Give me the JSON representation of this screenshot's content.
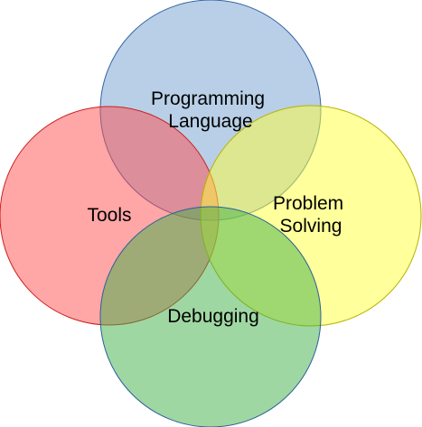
{
  "venn": {
    "sets": [
      {
        "id": "programming-language",
        "lines": [
          "Programming",
          "Language"
        ],
        "fill": "#729fcf",
        "stroke": "#3465a4"
      },
      {
        "id": "tools",
        "lines": [
          "Tools"
        ],
        "fill": "#ff4d4d",
        "stroke": "#c9211e"
      },
      {
        "id": "problem-solving",
        "lines": [
          "Problem",
          "Solving"
        ],
        "fill": "#ffff38",
        "stroke": "#b7b300"
      },
      {
        "id": "debugging",
        "lines": [
          "Debugging"
        ],
        "fill": "#3faf46",
        "stroke": "#2a6099"
      }
    ],
    "fill_opacity": 0.5
  }
}
